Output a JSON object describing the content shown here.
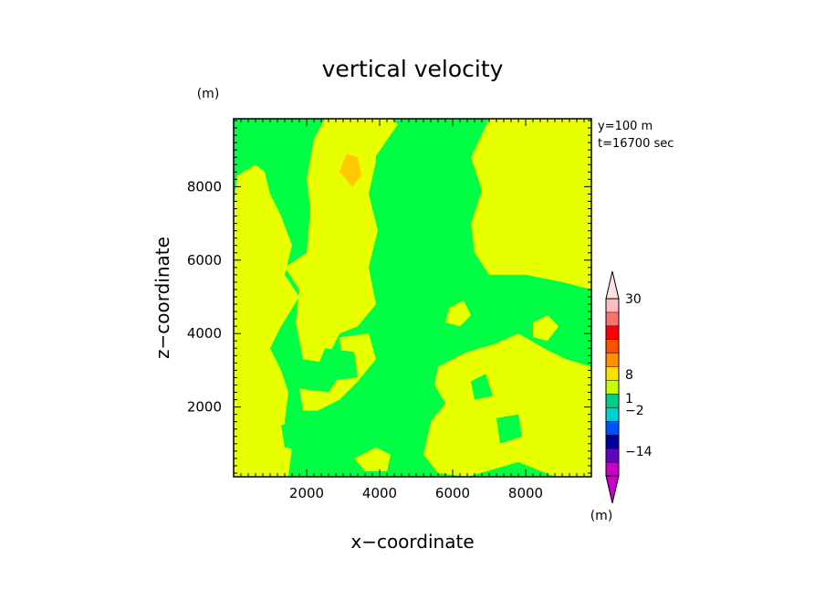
{
  "chart_data": {
    "type": "heatmap",
    "title": "vertical velocity",
    "xlabel": "x−coordinate",
    "ylabel": "z−coordinate",
    "x_unit": "(m)",
    "y_unit": "(m)",
    "xlim": [
      0,
      9800
    ],
    "ylim": [
      100,
      9850
    ],
    "xticks": [
      2000,
      4000,
      6000,
      8000
    ],
    "xtick_labels": [
      "2000",
      "4000",
      "6000",
      "8000"
    ],
    "yticks": [
      2000,
      4000,
      6000,
      8000
    ],
    "ytick_labels": [
      "2000",
      "4000",
      "6000",
      "8000"
    ],
    "annotations": [
      "y=100  m",
      "t=16700 sec"
    ],
    "colors": {
      "green": "#00ff44",
      "yellow": "#e8ff00",
      "orange": "#ffc800"
    },
    "colorbar": {
      "unit": "(m)",
      "tick_labels": [
        "30",
        "8",
        "1",
        "−2",
        "−14"
      ],
      "tick_values": [
        30,
        8,
        1,
        -2,
        -14
      ],
      "bands": [
        {
          "color": "#c800c8"
        },
        {
          "color": "#6400c8"
        },
        {
          "color": "#0000a0"
        },
        {
          "color": "#0050ff"
        },
        {
          "color": "#00d0d0"
        },
        {
          "color": "#00d080"
        },
        {
          "color": "#c8ff00"
        },
        {
          "color": "#ffe000"
        },
        {
          "color": "#ff9000"
        },
        {
          "color": "#ff5000"
        },
        {
          "color": "#ff0000"
        },
        {
          "color": "#ff7070"
        },
        {
          "color": "#ffbcbc"
        }
      ],
      "min_arrow_color": "#c800c8",
      "max_arrow_color": "#ffe0e0"
    },
    "regions": {
      "background": "green",
      "yellow": [
        [
          [
            0,
            100
          ],
          [
            1500,
            100
          ],
          [
            1600,
            900
          ],
          [
            1400,
            1600
          ],
          [
            1500,
            2400
          ],
          [
            1300,
            3000
          ],
          [
            1000,
            3600
          ],
          [
            1300,
            4200
          ],
          [
            1800,
            5000
          ],
          [
            1400,
            5600
          ],
          [
            1600,
            6400
          ],
          [
            1300,
            7200
          ],
          [
            1000,
            7800
          ],
          [
            850,
            8400
          ],
          [
            600,
            8600
          ],
          [
            100,
            8300
          ],
          [
            0,
            7500
          ]
        ],
        [
          [
            1400,
            5800
          ],
          [
            2000,
            6200
          ],
          [
            2100,
            7400
          ],
          [
            2000,
            8200
          ],
          [
            2200,
            9300
          ],
          [
            2500,
            9850
          ],
          [
            3900,
            9850
          ],
          [
            3900,
            8700
          ],
          [
            3700,
            7800
          ],
          [
            3950,
            6800
          ],
          [
            3700,
            5800
          ],
          [
            3900,
            4800
          ],
          [
            3400,
            4200
          ],
          [
            2900,
            4000
          ],
          [
            2500,
            3200
          ],
          [
            1900,
            3300
          ],
          [
            1700,
            4300
          ],
          [
            1800,
            5200
          ]
        ],
        [
          [
            3600,
            8400
          ],
          [
            4500,
            9700
          ],
          [
            4300,
            9850
          ],
          [
            3900,
            9850
          ]
        ],
        [
          [
            6500,
            7000
          ],
          [
            6800,
            7900
          ],
          [
            6500,
            8800
          ],
          [
            7000,
            9850
          ],
          [
            9800,
            9850
          ],
          [
            9800,
            5200
          ],
          [
            9000,
            5400
          ],
          [
            8000,
            5600
          ],
          [
            7000,
            5600
          ],
          [
            6600,
            6200
          ]
        ],
        [
          [
            5600,
            3100
          ],
          [
            6400,
            3500
          ],
          [
            7100,
            3700
          ],
          [
            7800,
            4000
          ],
          [
            8500,
            3600
          ],
          [
            9100,
            3300
          ],
          [
            9800,
            3100
          ],
          [
            9800,
            100
          ],
          [
            8800,
            100
          ],
          [
            7800,
            500
          ],
          [
            7100,
            300
          ],
          [
            6400,
            100
          ],
          [
            5600,
            200
          ],
          [
            5200,
            700
          ],
          [
            5400,
            1600
          ],
          [
            5800,
            2100
          ],
          [
            5500,
            2600
          ]
        ],
        [
          [
            1800,
            2500
          ],
          [
            2600,
            2400
          ],
          [
            3000,
            3000
          ],
          [
            2900,
            3900
          ],
          [
            3700,
            4000
          ],
          [
            3900,
            3300
          ],
          [
            3400,
            2700
          ],
          [
            2900,
            2200
          ],
          [
            2300,
            1900
          ],
          [
            1900,
            1900
          ]
        ],
        [
          [
            8200,
            4300
          ],
          [
            8600,
            4500
          ],
          [
            8900,
            4200
          ],
          [
            8600,
            3800
          ],
          [
            8200,
            3900
          ]
        ],
        [
          [
            5900,
            4700
          ],
          [
            6300,
            4900
          ],
          [
            6500,
            4500
          ],
          [
            6200,
            4200
          ],
          [
            5800,
            4300
          ]
        ],
        [
          [
            3300,
            600
          ],
          [
            3900,
            900
          ],
          [
            4300,
            700
          ],
          [
            4200,
            250
          ],
          [
            3600,
            250
          ]
        ],
        [
          [
            100,
            1500
          ],
          [
            500,
            2100
          ],
          [
            700,
            1600
          ],
          [
            400,
            1100
          ],
          [
            100,
            1200
          ]
        ]
      ],
      "green_inside": [
        [
          [
            2500,
            2700
          ],
          [
            3400,
            2800
          ],
          [
            3300,
            3500
          ],
          [
            2500,
            3600
          ],
          [
            2300,
            3100
          ]
        ],
        [
          [
            1400,
            900
          ],
          [
            1900,
            800
          ],
          [
            2200,
            1200
          ],
          [
            1800,
            1700
          ],
          [
            1300,
            1500
          ]
        ],
        [
          [
            7300,
            1000
          ],
          [
            7900,
            1200
          ],
          [
            7800,
            1800
          ],
          [
            7200,
            1700
          ]
        ],
        [
          [
            6600,
            2200
          ],
          [
            7100,
            2300
          ],
          [
            6900,
            2900
          ],
          [
            6500,
            2700
          ]
        ],
        [
          [
            400,
            9100
          ],
          [
            900,
            9000
          ],
          [
            1000,
            9500
          ],
          [
            500,
            9600
          ]
        ]
      ],
      "orange": [
        [
          [
            2900,
            8400
          ],
          [
            3250,
            8000
          ],
          [
            3500,
            8300
          ],
          [
            3400,
            8800
          ],
          [
            3100,
            8900
          ]
        ]
      ]
    }
  }
}
